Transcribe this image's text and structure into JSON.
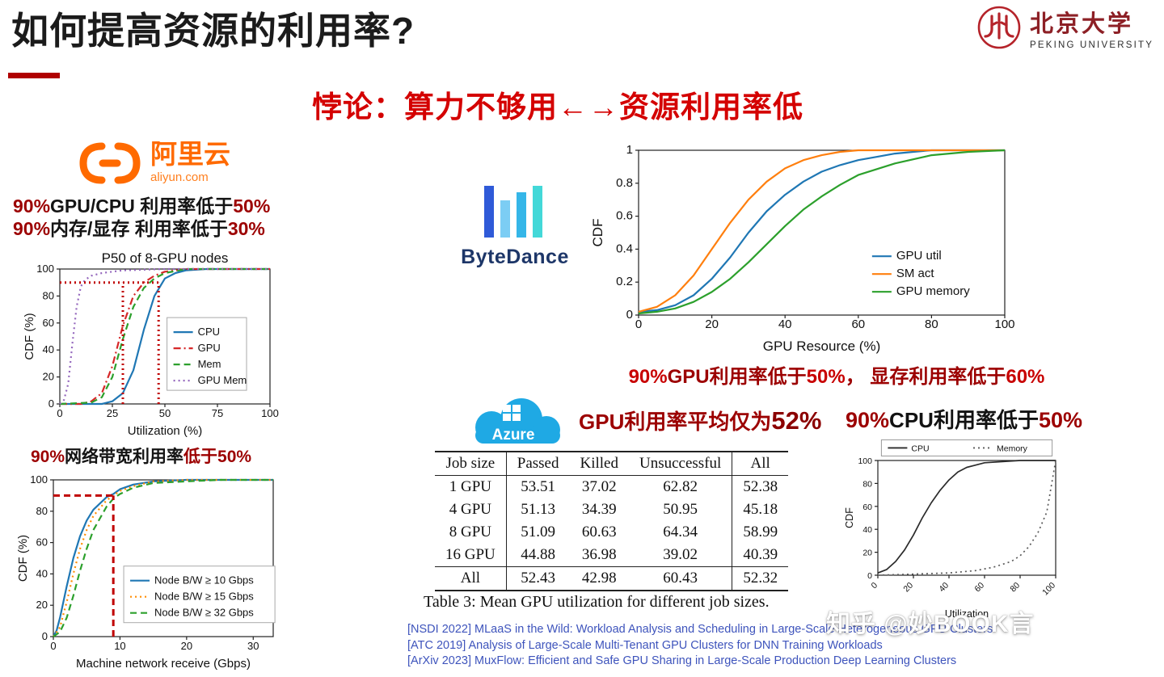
{
  "header": {
    "title": "如何提高资源的利用率?",
    "subtitle": "悖论：算力不够用←→资源利用率低",
    "pku_cn": "北京大学",
    "pku_en": "PEKING UNIVERSITY"
  },
  "aliyun": {
    "brand": "阿里云",
    "domain": "aliyun.com",
    "stat1": {
      "a": "90%",
      "b": "GPU/CPU 利用率低于",
      "c": "50%"
    },
    "stat2": {
      "a": "90%",
      "b": "内存/显存  利用率低于",
      "c": "30%"
    },
    "stat3": {
      "a": "90%",
      "b": "网络带宽利用率",
      "c": "低于50%"
    }
  },
  "bytedance": {
    "brand": "ByteDance",
    "note": {
      "a": "90%",
      "b": "GPU利用率低于",
      "c": "50%",
      "d": "， 显存利用率低于",
      "e": "60%"
    }
  },
  "azure": {
    "brand": "Azure",
    "note1": {
      "a": "GPU利用率平均仅为",
      "b": "52%"
    },
    "note2": {
      "a": "90%",
      "b": "CPU利用率低于",
      "c": "50%"
    },
    "table": {
      "headers": [
        "Job size",
        "Passed",
        "Killed",
        "Unsuccessful",
        "All"
      ],
      "rows": [
        [
          "1 GPU",
          "53.51",
          "37.02",
          "62.82",
          "52.38"
        ],
        [
          "4 GPU",
          "51.13",
          "34.39",
          "50.95",
          "45.18"
        ],
        [
          "8 GPU",
          "51.09",
          "60.63",
          "64.34",
          "58.99"
        ],
        [
          "16 GPU",
          "44.88",
          "36.98",
          "39.02",
          "40.39"
        ],
        [
          "All",
          "52.43",
          "42.98",
          "60.43",
          "52.32"
        ]
      ],
      "caption": "Table 3: Mean GPU utilization for different job sizes."
    }
  },
  "references": [
    "[NSDI 2022] MLaaS in the Wild: Workload Analysis and Scheduling in Large-Scale Heterogeneous GPU Clusters",
    "[ATC 2019] Analysis of Large-Scale Multi-Tenant GPU Clusters for DNN Training Workloads",
    "[ArXiv 2023] MuxFlow: Efficient and Safe GPU Sharing in Large-Scale Production Deep Learning Clusters"
  ],
  "watermark": "知乎 @妙BOOK言",
  "colors": {
    "accent_red": "#c00000",
    "dark_red": "#8b0000",
    "aliyun_orange": "#ff6a00",
    "azure_blue": "#1fa9e4",
    "ref_blue": "#3e54bc"
  },
  "chart_data": [
    {
      "id": "aliyun-utilization",
      "type": "line",
      "title": "P50 of 8-GPU nodes",
      "xlabel": "Utilization (%)",
      "ylabel": "CDF (%)",
      "xlim": [
        0,
        100
      ],
      "ylim": [
        0,
        100
      ],
      "xticks": [
        0,
        25,
        50,
        75,
        100
      ],
      "yticks": [
        0,
        20,
        40,
        60,
        80,
        100
      ],
      "grid": false,
      "legend": {
        "pos": [
          0.51,
          0.36
        ],
        "box": true
      },
      "series": [
        {
          "name": "CPU",
          "color": "#1f77b4",
          "dash": "solid",
          "x": [
            0,
            20,
            25,
            30,
            35,
            40,
            45,
            50,
            55,
            60,
            70,
            100
          ],
          "y": [
            0,
            0,
            2,
            8,
            25,
            55,
            80,
            93,
            97,
            99,
            100,
            100
          ]
        },
        {
          "name": "GPU",
          "color": "#d62728",
          "dash": "dashdot",
          "x": [
            0,
            10,
            15,
            20,
            25,
            30,
            35,
            40,
            45,
            50,
            60,
            100
          ],
          "y": [
            0,
            0,
            2,
            8,
            28,
            58,
            80,
            90,
            95,
            98,
            100,
            100
          ]
        },
        {
          "name": "Mem",
          "color": "#2ca02c",
          "dash": "dash",
          "x": [
            0,
            15,
            20,
            25,
            30,
            35,
            40,
            45,
            50,
            60,
            100
          ],
          "y": [
            0,
            1,
            5,
            20,
            48,
            72,
            86,
            93,
            97,
            100,
            100
          ]
        },
        {
          "name": "GPU Mem",
          "color": "#9467bd",
          "dash": "dot",
          "x": [
            0,
            2,
            4,
            6,
            8,
            10,
            12,
            15,
            20,
            30,
            50,
            100
          ],
          "y": [
            0,
            3,
            15,
            45,
            72,
            87,
            92,
            95,
            97,
            99,
            100,
            100
          ]
        }
      ],
      "annotations": [
        {
          "type": "h",
          "y": 90,
          "x0": 0,
          "x1": 47,
          "color": "#c00000",
          "dash": "dot",
          "w": 3
        },
        {
          "type": "v",
          "x": 30,
          "y0": 0,
          "y1": 90,
          "color": "#c00000",
          "dash": "dot",
          "w": 3
        },
        {
          "type": "v",
          "x": 47,
          "y0": 0,
          "y1": 90,
          "color": "#c00000",
          "dash": "dot",
          "w": 3
        }
      ]
    },
    {
      "id": "aliyun-network",
      "type": "line",
      "title": "",
      "xlabel": "Machine network receive (Gbps)",
      "ylabel": "CDF (%)",
      "xlim": [
        0,
        33
      ],
      "ylim": [
        0,
        100
      ],
      "xticks": [
        0,
        10,
        20,
        30
      ],
      "yticks": [
        0,
        20,
        40,
        60,
        80,
        100
      ],
      "grid": false,
      "legend": {
        "pos": [
          0.32,
          0.55
        ],
        "box": true
      },
      "series": [
        {
          "name": "Node B/W ≥ 10 Gbps",
          "color": "#1f77b4",
          "dash": "solid",
          "x": [
            0,
            0.5,
            1,
            2,
            3,
            4,
            5,
            6,
            8,
            9,
            10,
            12,
            15,
            20,
            33
          ],
          "y": [
            0,
            4,
            12,
            32,
            50,
            64,
            74,
            81,
            89,
            91,
            94,
            97,
            99,
            100,
            100
          ]
        },
        {
          "name": "Node B/W ≥ 15 Gbps",
          "color": "#ff8c00",
          "dash": "dot",
          "x": [
            0,
            1,
            2,
            3,
            4,
            5,
            6,
            8,
            9,
            10,
            12,
            15,
            20,
            33
          ],
          "y": [
            0,
            6,
            22,
            40,
            56,
            68,
            77,
            87,
            90,
            93,
            96,
            99,
            100,
            100
          ]
        },
        {
          "name": "Node B/W ≥ 32 Gbps",
          "color": "#2ca02c",
          "dash": "dash",
          "x": [
            0,
            1,
            2,
            3,
            4,
            5,
            6,
            8,
            9,
            10,
            12,
            15,
            20,
            25,
            33
          ],
          "y": [
            0,
            3,
            12,
            26,
            42,
            56,
            68,
            83,
            88,
            91,
            95,
            98,
            99,
            100,
            100
          ]
        }
      ],
      "annotations": [
        {
          "type": "h",
          "y": 90,
          "x0": 0,
          "x1": 9,
          "color": "#c00000",
          "dash": "dash",
          "w": 3
        },
        {
          "type": "v",
          "x": 9,
          "y0": 0,
          "y1": 90,
          "color": "#c00000",
          "dash": "dash",
          "w": 3
        }
      ]
    },
    {
      "id": "bytedance-gpu-resource",
      "type": "line",
      "title": "",
      "xlabel": "GPU Resource (%)",
      "ylabel": "CDF",
      "xlim": [
        0,
        100
      ],
      "ylim": [
        0,
        1
      ],
      "xticks": [
        0,
        20,
        40,
        60,
        80,
        100
      ],
      "yticks": [
        0,
        0.2,
        0.4,
        0.6,
        0.8,
        1
      ],
      "grid": false,
      "legend": {
        "pos": [
          0.62,
          0.55
        ],
        "box": false
      },
      "series": [
        {
          "name": "GPU util",
          "color": "#1f77b4",
          "dash": "solid",
          "x": [
            0,
            5,
            10,
            15,
            20,
            25,
            30,
            35,
            40,
            45,
            50,
            55,
            60,
            65,
            70,
            75,
            80,
            90,
            100
          ],
          "y": [
            0.02,
            0.03,
            0.06,
            0.12,
            0.22,
            0.35,
            0.5,
            0.63,
            0.73,
            0.81,
            0.87,
            0.91,
            0.94,
            0.96,
            0.98,
            0.99,
            1,
            1,
            1
          ]
        },
        {
          "name": "SM act",
          "color": "#ff7f0e",
          "dash": "solid",
          "x": [
            0,
            5,
            10,
            15,
            20,
            25,
            30,
            35,
            40,
            45,
            50,
            55,
            60,
            70,
            100
          ],
          "y": [
            0.02,
            0.05,
            0.12,
            0.24,
            0.4,
            0.56,
            0.7,
            0.81,
            0.89,
            0.94,
            0.97,
            0.99,
            1,
            1,
            1
          ]
        },
        {
          "name": "GPU memory",
          "color": "#2ca02c",
          "dash": "solid",
          "x": [
            0,
            5,
            10,
            15,
            20,
            25,
            30,
            35,
            40,
            45,
            50,
            55,
            60,
            70,
            80,
            90,
            100
          ],
          "y": [
            0.01,
            0.02,
            0.04,
            0.08,
            0.14,
            0.22,
            0.32,
            0.43,
            0.54,
            0.64,
            0.72,
            0.79,
            0.85,
            0.92,
            0.97,
            0.99,
            1
          ]
        }
      ],
      "annotations": []
    },
    {
      "id": "azure-utilization",
      "type": "line",
      "title": "",
      "xlabel": "Utilization",
      "ylabel": "CDF",
      "xlim": [
        0,
        100
      ],
      "ylim": [
        0,
        100
      ],
      "xticks": [
        0,
        20,
        40,
        60,
        80,
        100
      ],
      "yticks": [
        0,
        20,
        40,
        60,
        80,
        100
      ],
      "grid": false,
      "rotate_xticks": true,
      "legend": {
        "pos": [
          0.02,
          -0.18
        ],
        "box": true,
        "orient": "h",
        "wf": 0.96
      },
      "series": [
        {
          "name": "CPU",
          "color": "#2b2b2b",
          "dash": "solid",
          "x": [
            0,
            5,
            10,
            15,
            20,
            25,
            30,
            35,
            40,
            45,
            50,
            55,
            60,
            70,
            80,
            90,
            100
          ],
          "y": [
            2,
            5,
            12,
            22,
            35,
            50,
            63,
            74,
            83,
            90,
            94,
            96,
            98,
            99,
            100,
            100,
            100
          ]
        },
        {
          "name": "Memory",
          "color": "#5a5a5a",
          "dash": "dot",
          "x": [
            0,
            20,
            40,
            55,
            65,
            75,
            80,
            85,
            90,
            95,
            100
          ],
          "y": [
            0,
            1,
            2,
            4,
            7,
            12,
            17,
            25,
            37,
            55,
            100
          ]
        }
      ],
      "annotations": []
    }
  ]
}
